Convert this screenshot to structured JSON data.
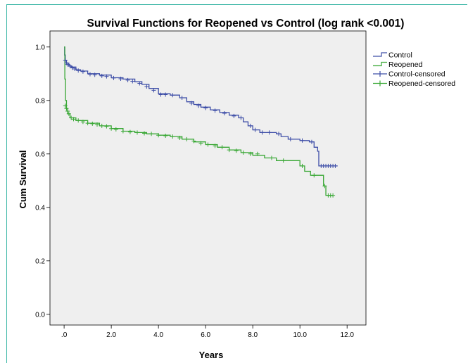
{
  "chart_data": {
    "type": "line",
    "title": "Survival Functions for Reopened vs Control (log rank <0.001)",
    "xlabel": "Years",
    "ylabel": "Cum Survival",
    "xlim": [
      -0.6,
      12.8
    ],
    "ylim": [
      -0.04,
      1.06
    ],
    "x_ticks": [
      0,
      2,
      4,
      6,
      8,
      10,
      12
    ],
    "x_tick_labels": [
      ".0",
      "2.0",
      "4.0",
      "6.0",
      "8.0",
      "10.0",
      "12.0"
    ],
    "y_ticks": [
      0,
      0.2,
      0.4,
      0.6,
      0.8,
      1.0
    ],
    "y_tick_labels": [
      "0.0",
      "0.2",
      "0.4",
      "0.6",
      "0.8",
      "1.0"
    ],
    "grid": false,
    "legend_position": "right",
    "legend": [
      "Control",
      "Reopened",
      "Control-censored",
      "Reopened-censored"
    ],
    "colors": {
      "control": "#3f4fa8",
      "reopened": "#3aa836",
      "plot_bg": "#efefef",
      "frame": "#3fb8a8"
    },
    "series": [
      {
        "name": "Control",
        "x": [
          0,
          0.02,
          0.05,
          0.1,
          0.2,
          0.3,
          0.5,
          0.7,
          1.0,
          1.5,
          2.0,
          2.5,
          3.0,
          3.3,
          3.6,
          4.0,
          4.5,
          4.9,
          5.2,
          5.5,
          5.8,
          6.2,
          6.6,
          7.0,
          7.4,
          7.6,
          7.8,
          8.0,
          8.3,
          8.6,
          9.0,
          9.2,
          9.5,
          10.0,
          10.4,
          10.6,
          10.75,
          10.8,
          11.6
        ],
        "y": [
          1.0,
          0.97,
          0.95,
          0.94,
          0.93,
          0.925,
          0.915,
          0.91,
          0.9,
          0.895,
          0.885,
          0.88,
          0.87,
          0.86,
          0.845,
          0.825,
          0.82,
          0.81,
          0.795,
          0.785,
          0.775,
          0.765,
          0.755,
          0.745,
          0.735,
          0.72,
          0.705,
          0.69,
          0.68,
          0.68,
          0.675,
          0.665,
          0.655,
          0.65,
          0.645,
          0.625,
          0.61,
          0.555,
          0.555
        ]
      },
      {
        "name": "Reopened",
        "x": [
          0,
          0.03,
          0.06,
          0.1,
          0.15,
          0.25,
          0.5,
          1.0,
          1.5,
          2.0,
          2.5,
          3.0,
          3.5,
          4.0,
          4.5,
          5.0,
          5.5,
          6.0,
          6.5,
          7.0,
          7.5,
          8.0,
          8.5,
          9.0,
          9.5,
          10.0,
          10.2,
          10.45,
          10.8,
          11.0,
          11.1,
          11.4
        ],
        "y": [
          1.0,
          0.88,
          0.8,
          0.77,
          0.75,
          0.735,
          0.725,
          0.715,
          0.705,
          0.695,
          0.685,
          0.68,
          0.675,
          0.67,
          0.665,
          0.655,
          0.645,
          0.635,
          0.625,
          0.615,
          0.605,
          0.595,
          0.585,
          0.575,
          0.575,
          0.555,
          0.535,
          0.52,
          0.52,
          0.48,
          0.445,
          0.445
        ]
      }
    ],
    "censored": [
      {
        "name": "Control-censored",
        "x": [
          0.05,
          0.1,
          0.15,
          0.25,
          0.35,
          0.45,
          0.6,
          0.8,
          1.1,
          1.3,
          1.6,
          1.8,
          2.1,
          2.4,
          2.7,
          2.9,
          3.2,
          3.5,
          3.8,
          4.1,
          4.3,
          4.6,
          5.0,
          5.4,
          5.7,
          6.0,
          6.4,
          6.8,
          7.2,
          7.5,
          7.9,
          8.1,
          8.4,
          8.7,
          9.1,
          9.6,
          10.1,
          10.5,
          10.9,
          11.0,
          11.1,
          11.2,
          11.3,
          11.4,
          11.5
        ],
        "y": [
          0.95,
          0.94,
          0.935,
          0.928,
          0.922,
          0.918,
          0.912,
          0.908,
          0.898,
          0.896,
          0.892,
          0.89,
          0.884,
          0.881,
          0.876,
          0.872,
          0.864,
          0.852,
          0.838,
          0.822,
          0.822,
          0.82,
          0.81,
          0.79,
          0.78,
          0.772,
          0.762,
          0.752,
          0.742,
          0.735,
          0.705,
          0.69,
          0.68,
          0.68,
          0.675,
          0.655,
          0.65,
          0.645,
          0.555,
          0.555,
          0.555,
          0.555,
          0.555,
          0.555,
          0.555
        ]
      },
      {
        "name": "Reopened-censored",
        "x": [
          0.05,
          0.1,
          0.15,
          0.2,
          0.3,
          0.4,
          0.6,
          0.8,
          1.0,
          1.2,
          1.4,
          1.6,
          1.8,
          2.0,
          2.2,
          2.5,
          2.8,
          3.1,
          3.4,
          3.7,
          4.0,
          4.3,
          4.6,
          4.9,
          5.2,
          5.5,
          5.8,
          6.1,
          6.4,
          6.7,
          7.0,
          7.3,
          7.6,
          7.9,
          8.2,
          8.8,
          9.3,
          10.1,
          10.6,
          11.05,
          11.2,
          11.3,
          11.4
        ],
        "y": [
          0.78,
          0.77,
          0.76,
          0.75,
          0.735,
          0.73,
          0.725,
          0.72,
          0.715,
          0.713,
          0.71,
          0.705,
          0.703,
          0.695,
          0.692,
          0.685,
          0.682,
          0.68,
          0.677,
          0.675,
          0.67,
          0.668,
          0.665,
          0.66,
          0.655,
          0.648,
          0.64,
          0.635,
          0.63,
          0.625,
          0.615,
          0.612,
          0.605,
          0.6,
          0.6,
          0.585,
          0.575,
          0.555,
          0.52,
          0.48,
          0.445,
          0.445,
          0.445
        ]
      }
    ]
  }
}
